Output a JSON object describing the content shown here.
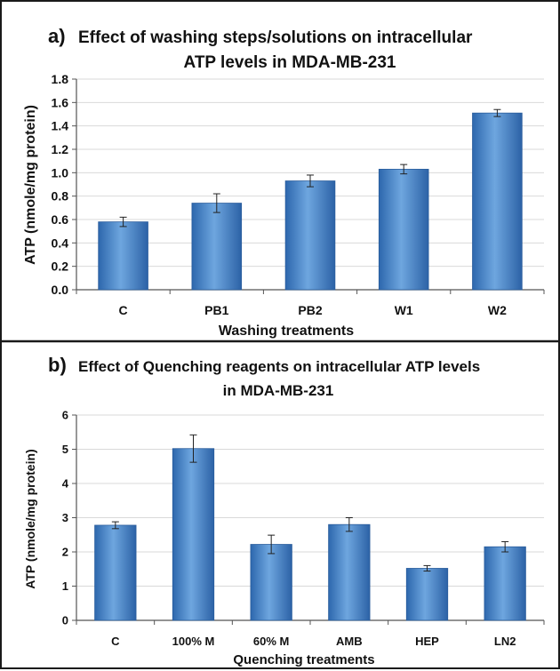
{
  "chart_data": [
    {
      "type": "bar",
      "panel_label": "a)",
      "title_line1": "Effect of washing steps/solutions on intracellular",
      "title_line2": "ATP levels in MDA-MB-231",
      "xlabel": "Washing treatments",
      "ylabel": "ATP (nmole/mg protein)",
      "ylim": [
        0.0,
        1.8
      ],
      "ytick_step": 0.2,
      "ytick_decimals": 1,
      "grid": true,
      "categories": [
        "C",
        "PB1",
        "PB2",
        "W1",
        "W2"
      ],
      "values": [
        0.58,
        0.74,
        0.93,
        1.03,
        1.51
      ],
      "errors": [
        0.04,
        0.08,
        0.05,
        0.04,
        0.03
      ],
      "bar_color": "#4a86c8"
    },
    {
      "type": "bar",
      "panel_label": "b)",
      "title_line1": "Effect of Quenching reagents on intracellular ATP levels",
      "title_line2": "in MDA-MB-231",
      "xlabel": "Quenching treatments",
      "ylabel": "ATP (nmole/mg protein)",
      "ylim": [
        0,
        6
      ],
      "ytick_step": 1,
      "ytick_decimals": 0,
      "grid": true,
      "categories": [
        "C",
        "100% M",
        "60% M",
        "AMB",
        "HEP",
        "LN2"
      ],
      "values": [
        2.78,
        5.02,
        2.22,
        2.8,
        1.52,
        2.15
      ],
      "errors": [
        0.1,
        0.4,
        0.27,
        0.2,
        0.08,
        0.15
      ],
      "bar_color": "#4a86c8"
    }
  ]
}
